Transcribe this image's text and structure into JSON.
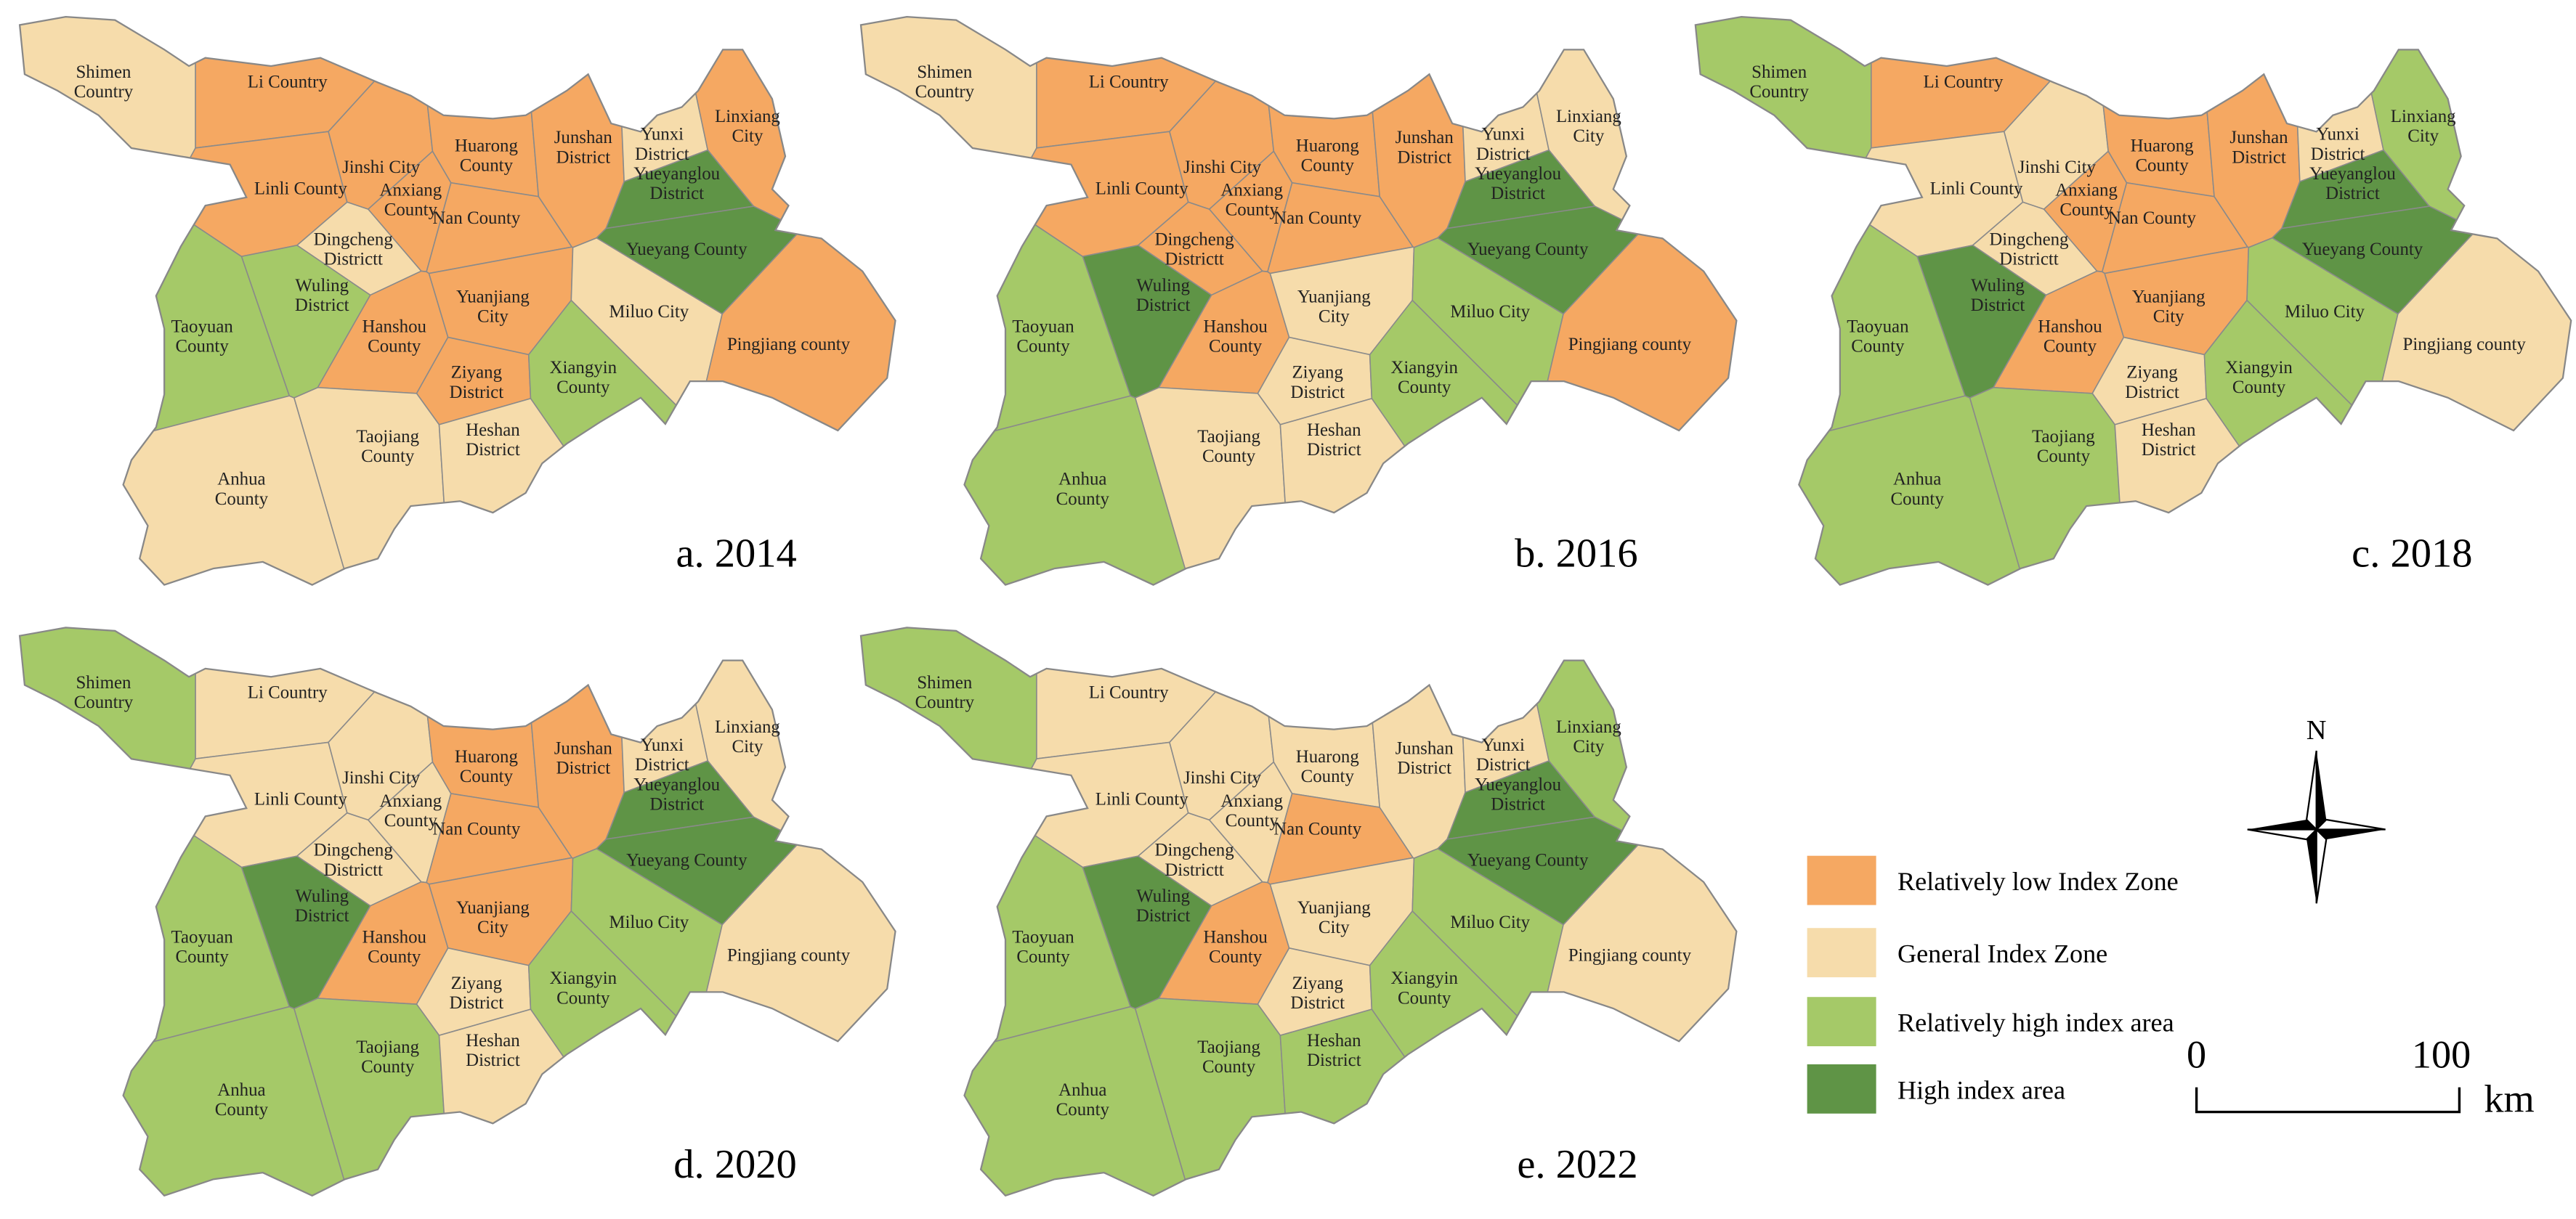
{
  "legend": [
    {
      "label": "Relatively low Index Zone",
      "color": "#f5a862"
    },
    {
      "label": "General Index Zone",
      "color": "#f6dcab"
    },
    {
      "label": "Relatively high  index area",
      "color": "#a5c968"
    },
    {
      "label": "High index area",
      "color": "#5f9446"
    }
  ],
  "districts": [
    "Shimen Country",
    "Li Country",
    "Linli County",
    "Jinshi City",
    "Anxiang County",
    "Huarong County",
    "Nan County",
    "Junshan District",
    "Yunxi District",
    "Linxiang City",
    "Yueyanglou District",
    "Yueyang County",
    "Dingcheng Districtt",
    "Wuling District",
    "Taoyuan County",
    "Hanshou County",
    "Yuanjiang City",
    "Ziyang District",
    "Miluo City",
    "Xiangyin County",
    "Pingjiang county",
    "Taojiang County",
    "Heshan District",
    "Anhua County"
  ],
  "panels": [
    {
      "label": "a. 2014",
      "zones": [
        1,
        0,
        0,
        0,
        0,
        0,
        0,
        0,
        1,
        0,
        3,
        3,
        1,
        2,
        2,
        0,
        0,
        0,
        1,
        2,
        0,
        1,
        1,
        1
      ]
    },
    {
      "label": "b. 2016",
      "zones": [
        1,
        0,
        0,
        0,
        0,
        0,
        0,
        0,
        1,
        1,
        3,
        3,
        0,
        3,
        2,
        0,
        1,
        1,
        2,
        2,
        0,
        1,
        1,
        2
      ]
    },
    {
      "label": "c. 2018",
      "zones": [
        2,
        0,
        1,
        1,
        0,
        0,
        0,
        0,
        1,
        2,
        3,
        3,
        1,
        3,
        2,
        0,
        0,
        1,
        2,
        2,
        1,
        2,
        1,
        2
      ]
    },
    {
      "label": "d. 2020",
      "zones": [
        2,
        1,
        1,
        1,
        1,
        0,
        0,
        0,
        1,
        1,
        3,
        3,
        1,
        3,
        2,
        0,
        0,
        1,
        2,
        2,
        1,
        2,
        1,
        2
      ]
    },
    {
      "label": "e. 2022",
      "zones": [
        2,
        1,
        1,
        1,
        1,
        1,
        0,
        1,
        1,
        2,
        3,
        3,
        1,
        3,
        2,
        0,
        1,
        1,
        2,
        2,
        1,
        2,
        2,
        2
      ]
    }
  ],
  "north": "N",
  "scale_bar": {
    "start": "0",
    "end": "100",
    "unit": "km"
  }
}
